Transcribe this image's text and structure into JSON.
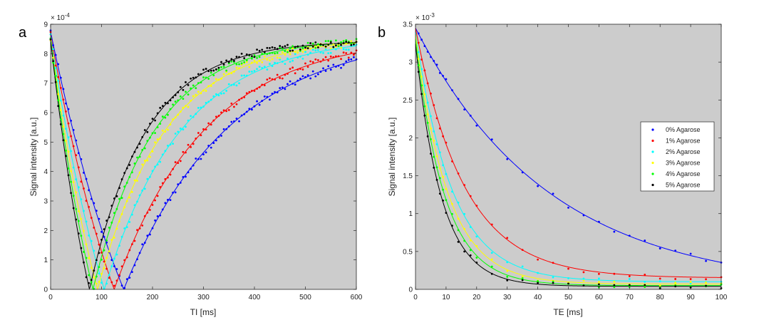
{
  "chart_data": [
    {
      "type": "scatter",
      "panel_label": "a",
      "xlabel": "TI [ms]",
      "ylabel": "Signal intensity [a.u.]",
      "exponent_label": "× 10",
      "exponent_power": "-4",
      "xlim": [
        0,
        600
      ],
      "ylim": [
        0,
        9
      ],
      "x_ticks": [
        0,
        100,
        200,
        300,
        400,
        500,
        600
      ],
      "y_ticks": [
        0,
        1,
        2,
        3,
        4,
        5,
        6,
        7,
        8,
        9
      ],
      "background": "#cccccc",
      "model": "inversion_recovery",
      "x_sample_start": 0,
      "x_sample_end": 600,
      "x_sample_step": 5,
      "series": [
        {
          "name": "0% Agarose",
          "color": "#0000ff",
          "S0": 8.75,
          "T1": 207
        },
        {
          "name": "1% Agarose",
          "color": "#ff0000",
          "S0": 8.65,
          "T1": 180
        },
        {
          "name": "2% Agarose",
          "color": "#00ffff",
          "S0": 8.6,
          "T1": 152
        },
        {
          "name": "3% Agarose",
          "color": "#ffff00",
          "S0": 8.55,
          "T1": 133
        },
        {
          "name": "4% Agarose",
          "color": "#00ff00",
          "S0": 8.5,
          "T1": 120
        },
        {
          "name": "5% Agarose",
          "color": "#000000",
          "S0": 8.45,
          "T1": 110
        }
      ]
    },
    {
      "type": "scatter",
      "panel_label": "b",
      "xlabel": "TE [ms]",
      "ylabel": "Signal intensity [a.u.]",
      "exponent_label": "× 10",
      "exponent_power": "-3",
      "xlim": [
        0,
        100
      ],
      "ylim": [
        0,
        3.5
      ],
      "x_ticks": [
        0,
        10,
        20,
        30,
        40,
        50,
        60,
        70,
        80,
        90,
        100
      ],
      "y_ticks": [
        0,
        0.5,
        1,
        1.5,
        2,
        2.5,
        3,
        3.5
      ],
      "background": "#cccccc",
      "model": "t2_decay",
      "x_samples": [
        1,
        2,
        3,
        4,
        5,
        6,
        7,
        8,
        9,
        10,
        12,
        14,
        16,
        18,
        20,
        25,
        30,
        35,
        40,
        45,
        50,
        55,
        60,
        65,
        70,
        75,
        80,
        85,
        90,
        95,
        100
      ],
      "legend_position": "right",
      "series": [
        {
          "name": "0% Agarose",
          "color": "#0000ff",
          "S0": 3.45,
          "T2": 44,
          "offset": 0.0
        },
        {
          "name": "1% Agarose",
          "color": "#ff0000",
          "S0": 3.3,
          "T2": 16,
          "offset": 0.15
        },
        {
          "name": "2% Agarose",
          "color": "#00ffff",
          "S0": 3.3,
          "T2": 12,
          "offset": 0.1
        },
        {
          "name": "3% Agarose",
          "color": "#ffff00",
          "S0": 3.3,
          "T2": 10.5,
          "offset": 0.07
        },
        {
          "name": "4% Agarose",
          "color": "#00ff00",
          "S0": 3.25,
          "T2": 9.5,
          "offset": 0.05
        },
        {
          "name": "5% Agarose",
          "color": "#000000",
          "S0": 3.2,
          "T2": 8.5,
          "offset": 0.04
        }
      ]
    }
  ]
}
